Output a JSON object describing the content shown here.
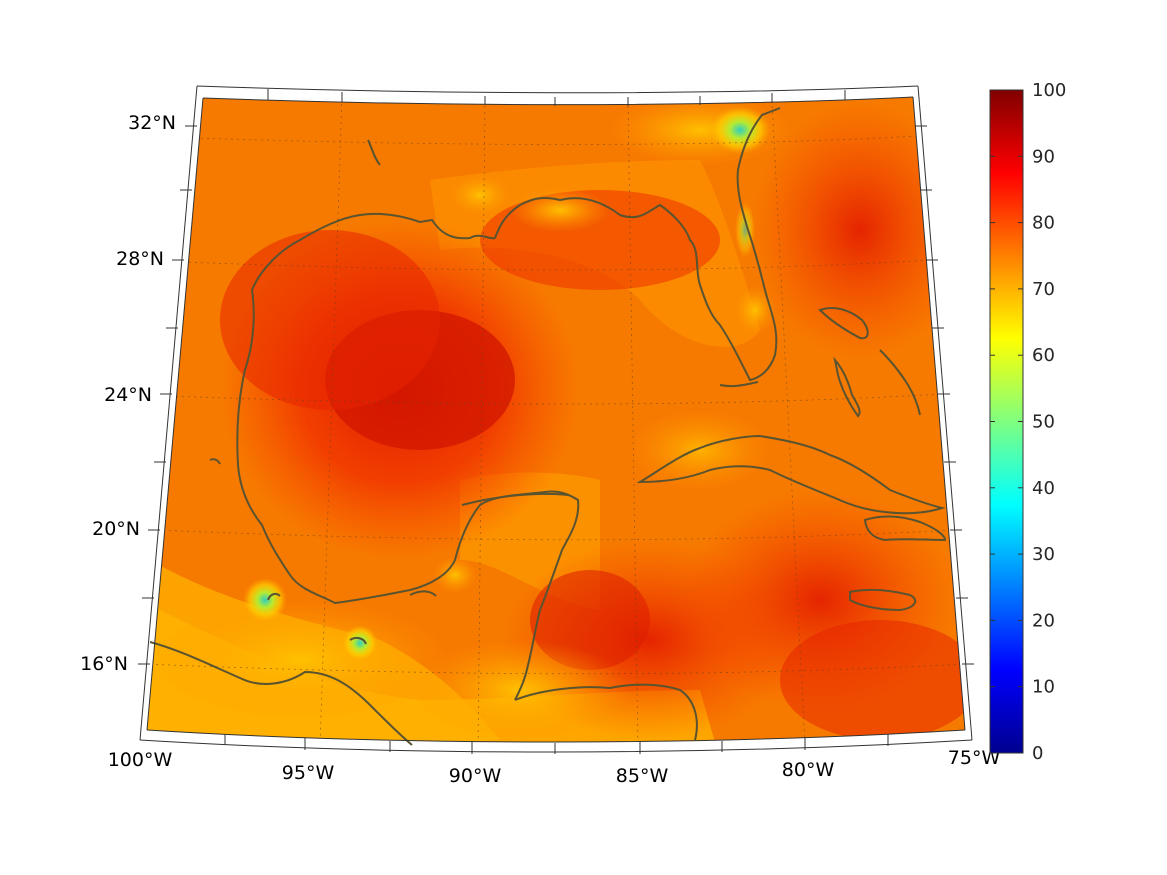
{
  "map": {
    "lat_labels": [
      {
        "text": "32°N",
        "lat": 32
      },
      {
        "text": "28°N",
        "lat": 28
      },
      {
        "text": "24°N",
        "lat": 24
      },
      {
        "text": "20°N",
        "lat": 20
      },
      {
        "text": "16°N",
        "lat": 16
      }
    ],
    "lon_labels": [
      {
        "text": "100°W",
        "lon": -100
      },
      {
        "text": "95°W",
        "lon": -95
      },
      {
        "text": "90°W",
        "lon": -90
      },
      {
        "text": "85°W",
        "lon": -85
      },
      {
        "text": "80°W",
        "lon": -80
      },
      {
        "text": "75°W",
        "lon": -75
      }
    ],
    "extent": {
      "lon": [
        -100,
        -75
      ],
      "lat": [
        14,
        33
      ]
    },
    "grid": true,
    "coastline_color": "#5a5330"
  },
  "colorbar": {
    "range": [
      0,
      100
    ],
    "colormap": "jet",
    "ticks": [
      "0",
      "10",
      "20",
      "30",
      "40",
      "50",
      "60",
      "70",
      "80",
      "90",
      "100"
    ]
  }
}
